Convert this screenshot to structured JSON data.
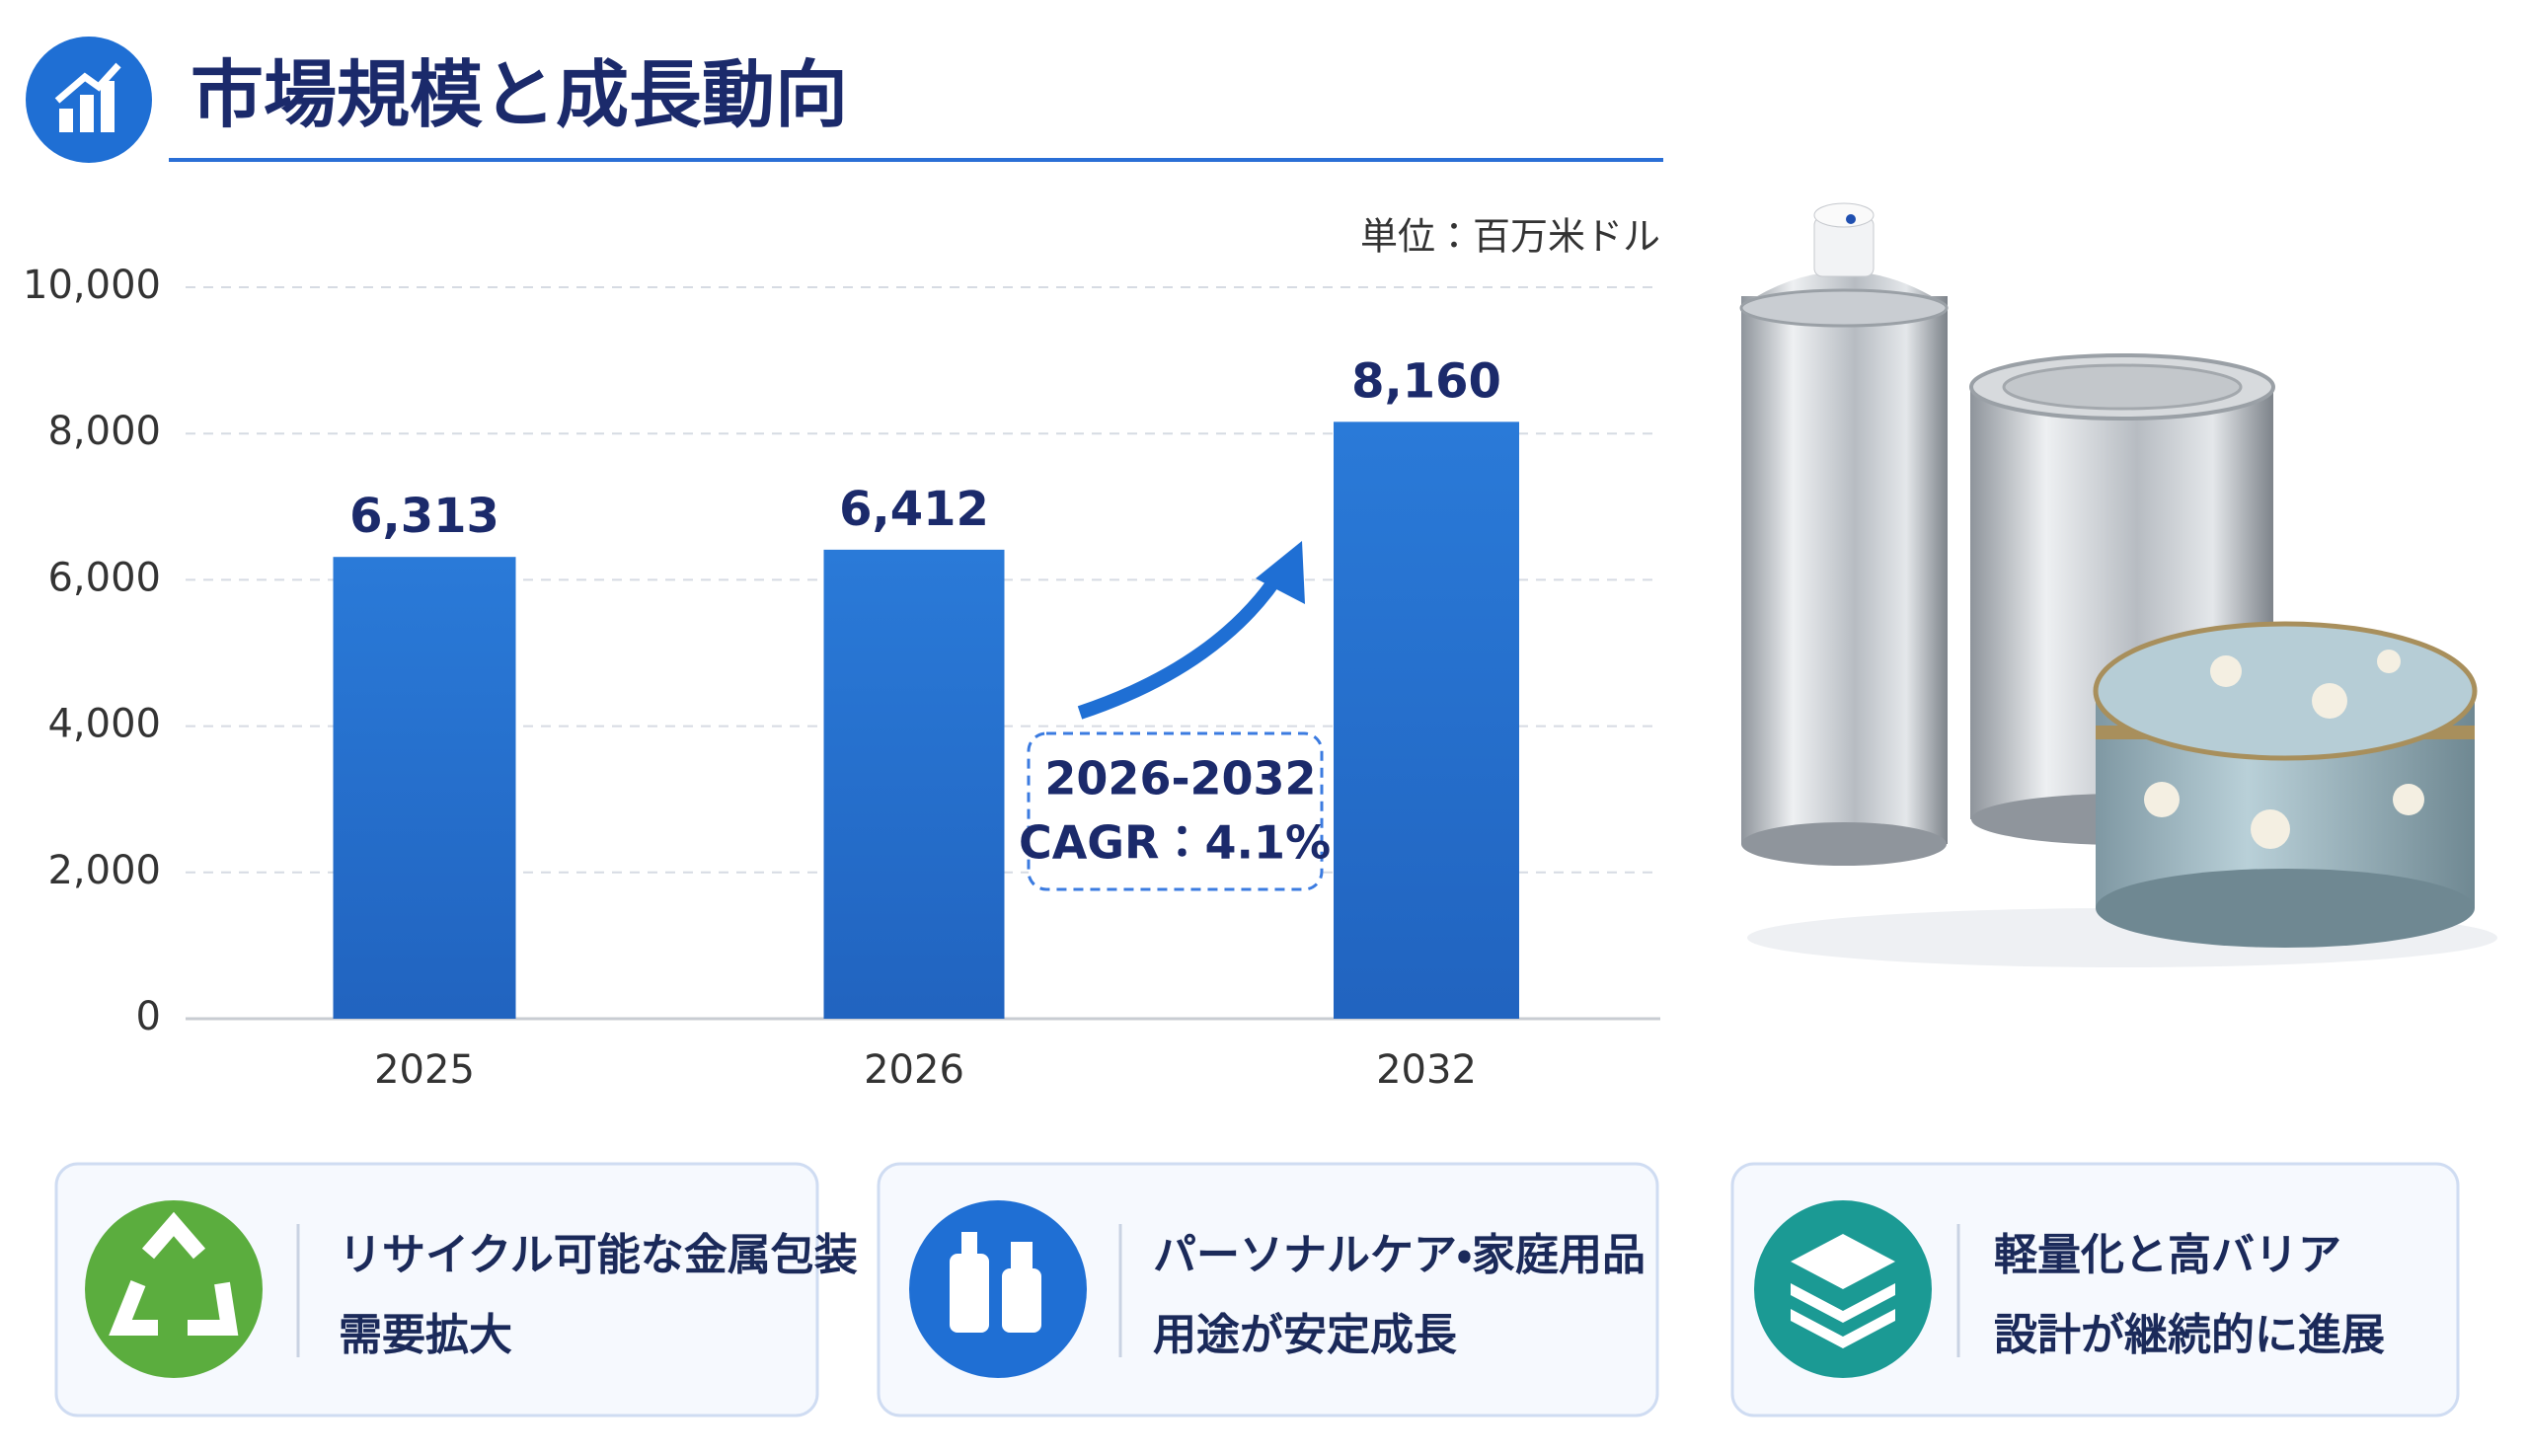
{
  "chart_data": {
    "type": "bar",
    "title": "市場規模と成長動向",
    "unit_label": "単位：百万米ドル",
    "categories": [
      "2025",
      "2026",
      "2032"
    ],
    "values": [
      6313,
      6412,
      8160
    ],
    "value_labels": [
      "6,313",
      "6,412",
      "8,160"
    ],
    "color": "#2a7ad8",
    "ylim": [
      0,
      10000
    ],
    "yticks": [
      0,
      {
        "value": 2000,
        "label": "2,000"
      },
      {
        "value": 4000,
        "label": "4,000"
      },
      {
        "value": 6000,
        "label": "6,000"
      },
      {
        "value": 8000,
        "label": "8,000"
      },
      {
        "value": 10000,
        "label": "10,000"
      }
    ],
    "grid": true,
    "annotation": [
      "2026-2032",
      "CAGR：4.1%"
    ]
  },
  "cards": [
    {
      "lines": [
        "リサイクル可能な金属包装",
        "需要拡大"
      ]
    },
    {
      "lines": [
        "パーソナルケア・家庭用品",
        "用途が安定成長"
      ]
    },
    {
      "lines": [
        "軽量化と高バリア",
        "設計が継続的に進展"
      ]
    }
  ]
}
